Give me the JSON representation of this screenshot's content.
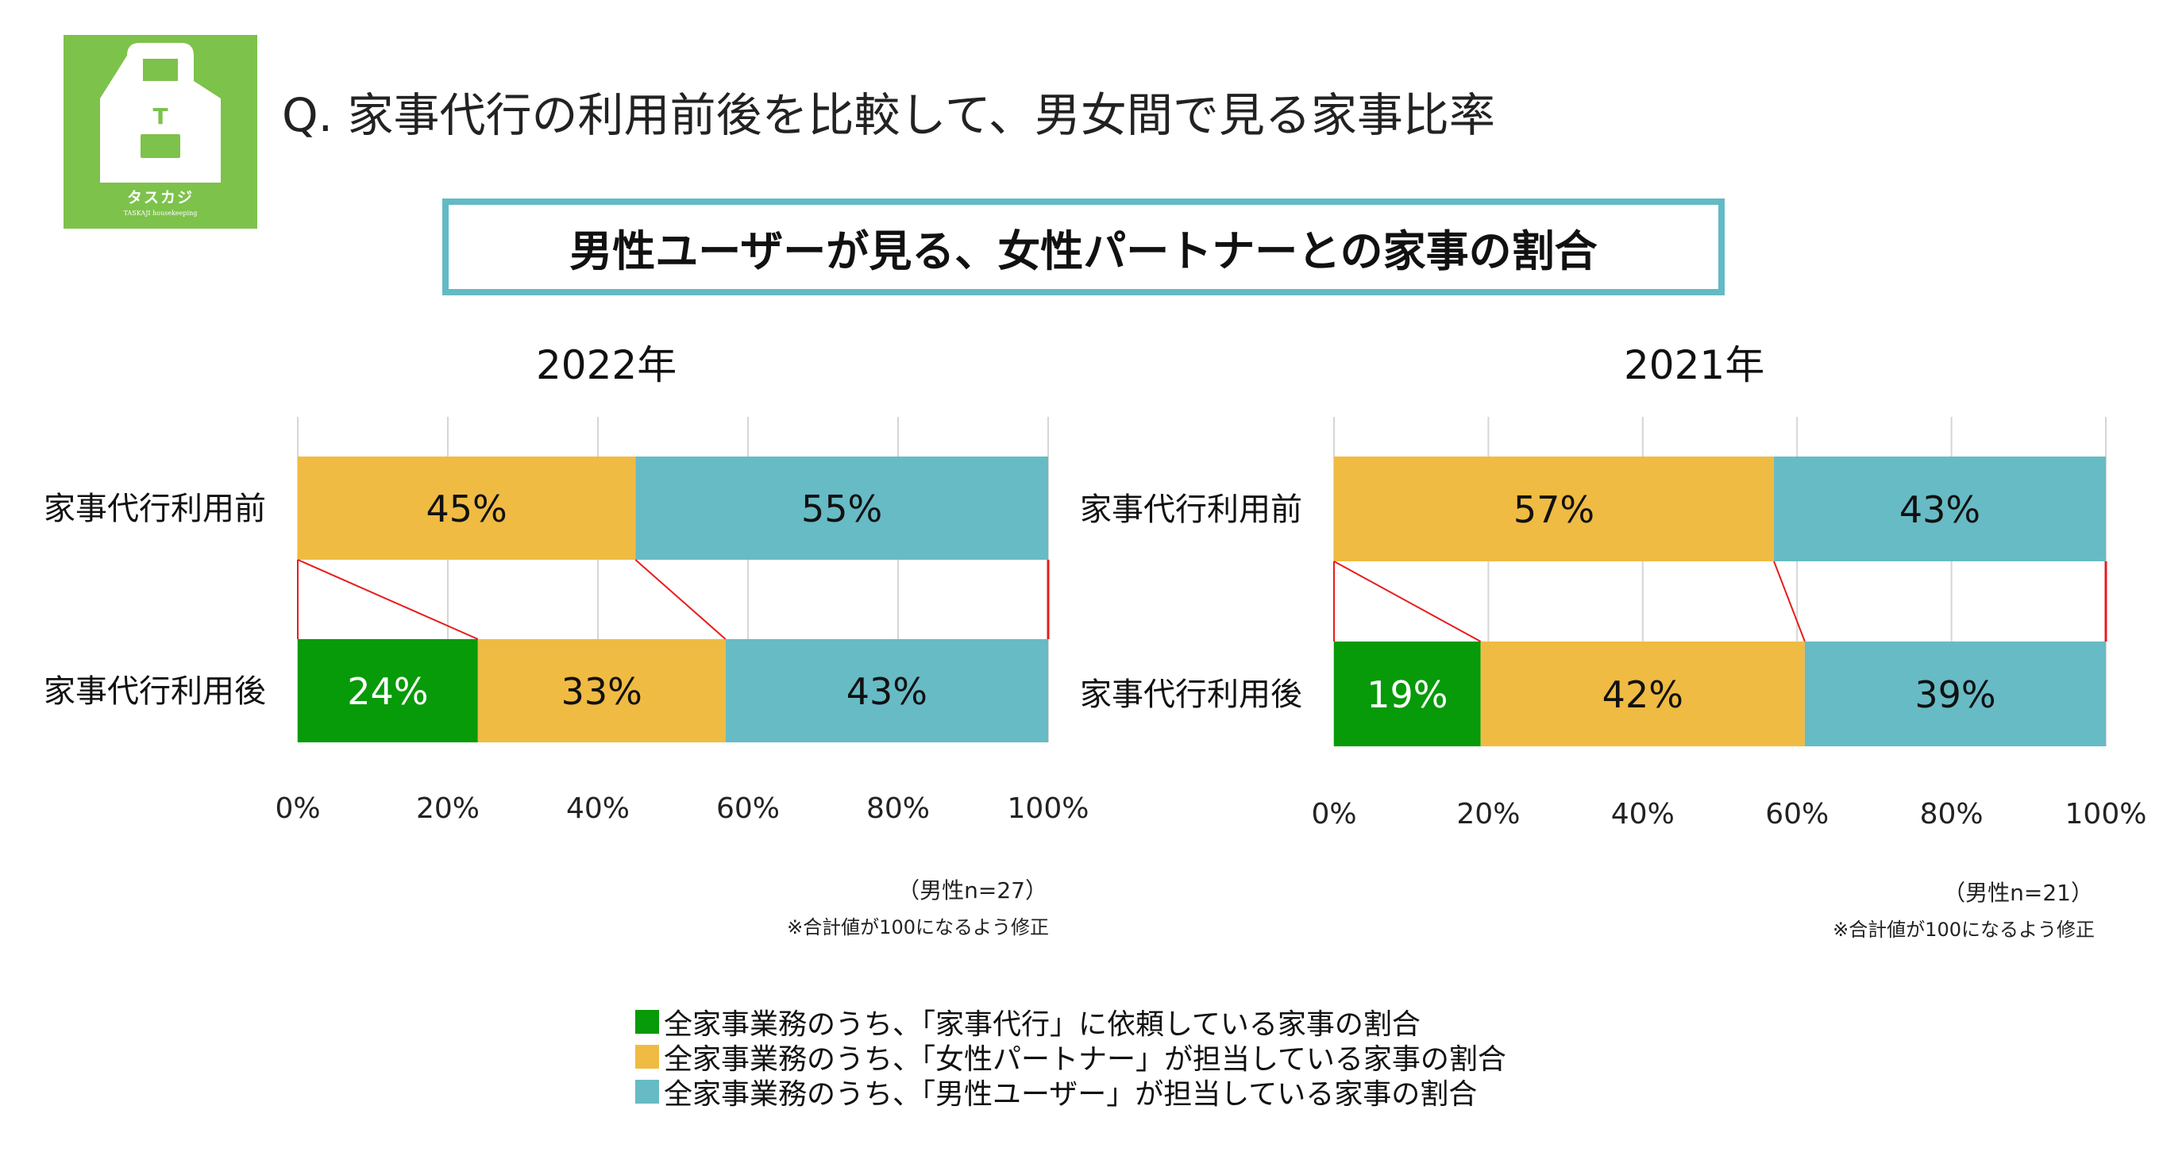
{
  "logo": {
    "letter": "T",
    "name": "タスカジ",
    "subtitle": "TASKAJI housekeeping"
  },
  "title": "Q. 家事代行の利用前後を比較して、男女間で見る家事比率",
  "subtitle": "男性ユーザーが見る、女性パートナーとの家事の割合",
  "colors": {
    "agency": "#079a09",
    "female": "#f0bb43",
    "male": "#67bbc5",
    "connector": "#e81c1c",
    "logo_bg": "#7dc24b",
    "frame": "#63bac5"
  },
  "chart_data": [
    {
      "type": "bar",
      "orientation": "horizontal-stacked-100",
      "title": "2022年",
      "categories": [
        "家事代行利用前",
        "家事代行利用後"
      ],
      "series": [
        {
          "name": "全家事業務のうち、「家事代行」に依頼している家事の割合",
          "key": "agency",
          "values": [
            0,
            24
          ]
        },
        {
          "name": "全家事業務のうち、「女性パートナー」が担当している家事の割合",
          "key": "female",
          "values": [
            45,
            33
          ]
        },
        {
          "name": "全家事業務のうち、「男性ユーザー」が担当している家事の割合",
          "key": "male",
          "values": [
            55,
            43
          ]
        }
      ],
      "xlim": [
        0,
        100
      ],
      "xticks": [
        "0%",
        "20%",
        "40%",
        "60%",
        "80%",
        "100%"
      ],
      "grid": true,
      "sample_note": "（男性n=27）",
      "adjust_note": "※合計値が100になるよう修正"
    },
    {
      "type": "bar",
      "orientation": "horizontal-stacked-100",
      "title": "2021年",
      "categories": [
        "家事代行利用前",
        "家事代行利用後"
      ],
      "series": [
        {
          "name": "全家事業務のうち、「家事代行」に依頼している家事の割合",
          "key": "agency",
          "values": [
            0,
            19
          ]
        },
        {
          "name": "全家事業務のうち、「女性パートナー」が担当している家事の割合",
          "key": "female",
          "values": [
            57,
            42
          ]
        },
        {
          "name": "全家事業務のうち、「男性ユーザー」が担当している家事の割合",
          "key": "male",
          "values": [
            43,
            39
          ]
        }
      ],
      "xlim": [
        0,
        100
      ],
      "xticks": [
        "0%",
        "20%",
        "40%",
        "60%",
        "80%",
        "100%"
      ],
      "grid": true,
      "sample_note": "（男性n=21）",
      "adjust_note": "※合計値が100になるよう修正"
    }
  ],
  "legend": [
    {
      "key": "agency",
      "label": "全家事業務のうち、「家事代行」に依頼している家事の割合"
    },
    {
      "key": "female",
      "label": "全家事業務のうち、「女性パートナー」が担当している家事の割合"
    },
    {
      "key": "male",
      "label": "全家事業務のうち、「男性ユーザー」が担当している家事の割合"
    }
  ]
}
